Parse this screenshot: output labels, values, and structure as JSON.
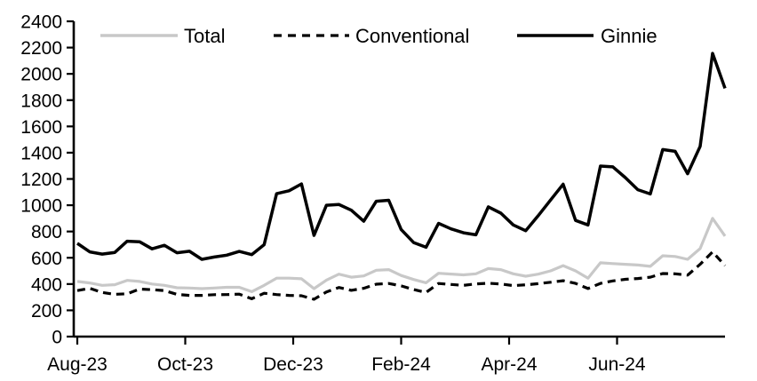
{
  "chart_data": {
    "type": "line",
    "title": "",
    "xlabel": "",
    "ylabel": "",
    "ylim": [
      0,
      2400
    ],
    "y_ticks": [
      0,
      200,
      400,
      600,
      800,
      1000,
      1200,
      1400,
      1600,
      1800,
      2000,
      2200,
      2400
    ],
    "x_ticks": [
      {
        "label": "Aug-23",
        "month": 0
      },
      {
        "label": "Oct-23",
        "month": 2
      },
      {
        "label": "Dec-23",
        "month": 4
      },
      {
        "label": "Feb-24",
        "month": 6
      },
      {
        "label": "Apr-24",
        "month": 8
      },
      {
        "label": "Jun-24",
        "month": 10
      }
    ],
    "x_total_months": 12,
    "x_unit": "week",
    "n_points": 53,
    "grid": false,
    "legend": {
      "position": "top-inside",
      "entries": [
        "Total",
        "Conventional",
        "Ginnie"
      ]
    },
    "series": [
      {
        "name": "Total",
        "color": "#c8c8c8",
        "style": "solid",
        "values": [
          420,
          408,
          390,
          395,
          428,
          420,
          400,
          390,
          372,
          370,
          365,
          370,
          375,
          375,
          342,
          390,
          445,
          445,
          440,
          365,
          430,
          475,
          452,
          462,
          505,
          510,
          465,
          435,
          410,
          482,
          476,
          470,
          478,
          518,
          510,
          478,
          460,
          475,
          500,
          540,
          500,
          445,
          562,
          556,
          550,
          545,
          535,
          615,
          610,
          588,
          670,
          900,
          765
        ]
      },
      {
        "name": "Conventional",
        "color": "#000000",
        "style": "dashed",
        "values": [
          350,
          368,
          336,
          322,
          326,
          362,
          357,
          350,
          321,
          314,
          314,
          319,
          320,
          323,
          288,
          330,
          320,
          314,
          311,
          284,
          340,
          374,
          352,
          368,
          399,
          404,
          386,
          358,
          336,
          404,
          397,
          390,
          401,
          406,
          400,
          388,
          394,
          403,
          414,
          425,
          405,
          366,
          405,
          424,
          436,
          442,
          452,
          480,
          478,
          468,
          550,
          645,
          540
        ]
      },
      {
        "name": "Ginnie",
        "color": "#000000",
        "style": "solid",
        "values": [
          710,
          645,
          628,
          640,
          726,
          722,
          668,
          695,
          638,
          650,
          588,
          606,
          620,
          648,
          624,
          700,
          1088,
          1110,
          1162,
          770,
          1000,
          1006,
          962,
          878,
          1030,
          1038,
          815,
          716,
          680,
          862,
          820,
          790,
          775,
          988,
          940,
          850,
          806,
          920,
          1040,
          1160,
          884,
          850,
          1298,
          1292,
          1210,
          1118,
          1086,
          1424,
          1410,
          1240,
          1448,
          2156,
          1890
        ]
      }
    ]
  }
}
